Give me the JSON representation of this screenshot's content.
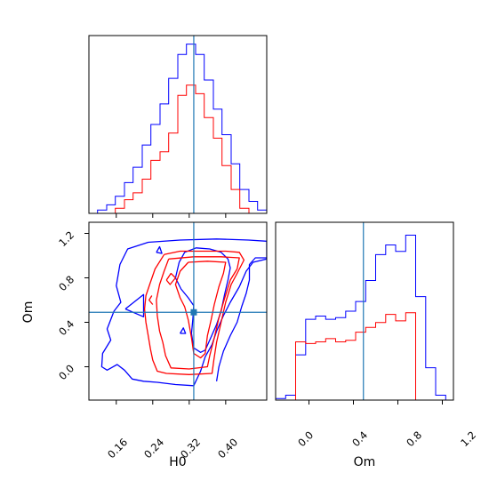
{
  "chart_data": {
    "type": "corner",
    "parameters": [
      "H0",
      "Om"
    ],
    "truths": {
      "H0": 0.33,
      "Om": 0.49
    },
    "colors": {
      "blue": "#0000ff",
      "red": "#ff0000",
      "truth": "#1f77b4"
    },
    "axes": {
      "H0": {
        "xlabel": "H0",
        "range": [
          0.1,
          0.49
        ],
        "ticks": [
          "0.16",
          "0.24",
          "0.32",
          "0.40"
        ]
      },
      "Om": {
        "ylabel": "Om",
        "xlabel": "Om",
        "range": [
          -0.3,
          1.3
        ],
        "ticks": [
          "0.0",
          "0.4",
          "0.8",
          "1.2"
        ]
      }
    },
    "hist_H0": {
      "edges": [
        0.1,
        0.119,
        0.139,
        0.158,
        0.178,
        0.197,
        0.217,
        0.236,
        0.256,
        0.275,
        0.295,
        0.314,
        0.334,
        0.353,
        0.373,
        0.392,
        0.412,
        0.431,
        0.451,
        0.47,
        0.49
      ],
      "series": [
        {
          "color": "blue",
          "values": [
            0,
            2,
            5,
            10,
            18,
            27,
            40,
            52,
            64,
            79,
            93,
            99,
            93,
            78,
            61,
            46,
            29,
            14,
            7,
            2
          ]
        },
        {
          "color": "red",
          "values": [
            0,
            0,
            0,
            3,
            8,
            12,
            20,
            31,
            36,
            47,
            69,
            75,
            70,
            56,
            44,
            28,
            14,
            3,
            0,
            0
          ]
        }
      ],
      "ymax": 104
    },
    "hist_Om": {
      "edges": [
        -0.3,
        -0.21,
        -0.12,
        -0.03,
        0.06,
        0.15,
        0.24,
        0.33,
        0.42,
        0.51,
        0.6,
        0.69,
        0.78,
        0.87,
        0.96,
        1.05,
        1.14,
        1.23
      ],
      "series": [
        {
          "color": "blue",
          "values": [
            1,
            3,
            28,
            50,
            52,
            50,
            51,
            55,
            61,
            74,
            90,
            96,
            92,
            102,
            64,
            20,
            3
          ]
        },
        {
          "color": "red",
          "values": [
            0,
            0,
            36,
            35,
            36,
            38,
            36,
            37,
            42,
            45,
            48,
            53,
            49,
            54,
            0,
            0,
            0
          ]
        }
      ],
      "ymax": 110
    },
    "contours": [
      {
        "color": "blue",
        "points": [
          [
            0.25,
            -0.14
          ],
          [
            0.22,
            -0.13
          ],
          [
            0.195,
            -0.11
          ],
          [
            0.178,
            -0.03
          ],
          [
            0.162,
            0.02
          ],
          [
            0.14,
            -0.03
          ],
          [
            0.128,
            0.0
          ],
          [
            0.13,
            0.12
          ],
          [
            0.148,
            0.24
          ],
          [
            0.14,
            0.34
          ],
          [
            0.155,
            0.5
          ],
          [
            0.17,
            0.58
          ],
          [
            0.16,
            0.73
          ],
          [
            0.168,
            0.92
          ],
          [
            0.185,
            1.06
          ],
          [
            0.23,
            1.12
          ],
          [
            0.3,
            1.14
          ],
          [
            0.38,
            1.15
          ],
          [
            0.45,
            1.14
          ],
          [
            0.49,
            1.13
          ],
          [
            0.49,
            0.97
          ],
          [
            0.46,
            0.94
          ],
          [
            0.445,
            0.86
          ],
          [
            0.43,
            0.72
          ],
          [
            0.41,
            0.58
          ],
          [
            0.395,
            0.46
          ],
          [
            0.38,
            0.32
          ],
          [
            0.37,
            0.2
          ],
          [
            0.355,
            0.09
          ],
          [
            0.345,
            -0.04
          ],
          [
            0.33,
            -0.17
          ],
          [
            0.29,
            -0.16
          ],
          [
            0.25,
            -0.14
          ]
        ]
      },
      {
        "color": "blue",
        "points": [
          [
            0.38,
            -0.13
          ],
          [
            0.385,
            0.0
          ],
          [
            0.395,
            0.14
          ],
          [
            0.41,
            0.28
          ],
          [
            0.425,
            0.4
          ],
          [
            0.435,
            0.54
          ],
          [
            0.445,
            0.66
          ],
          [
            0.452,
            0.78
          ],
          [
            0.452,
            0.92
          ],
          [
            0.465,
            0.98
          ],
          [
            0.49,
            0.98
          ]
        ]
      },
      {
        "color": "blue",
        "points": [
          [
            0.298,
            0.94
          ],
          [
            0.31,
            1.03
          ],
          [
            0.335,
            1.07
          ],
          [
            0.365,
            1.06
          ],
          [
            0.39,
            1.03
          ],
          [
            0.405,
            0.97
          ],
          [
            0.41,
            0.89
          ],
          [
            0.405,
            0.78
          ],
          [
            0.397,
            0.64
          ],
          [
            0.39,
            0.5
          ],
          [
            0.38,
            0.38
          ],
          [
            0.365,
            0.24
          ],
          [
            0.355,
            0.15
          ],
          [
            0.345,
            0.13
          ],
          [
            0.33,
            0.17
          ],
          [
            0.325,
            0.3
          ],
          [
            0.328,
            0.43
          ],
          [
            0.33,
            0.55
          ],
          [
            0.318,
            0.62
          ],
          [
            0.302,
            0.7
          ],
          [
            0.29,
            0.8
          ],
          [
            0.298,
            0.94
          ]
        ]
      },
      {
        "color": "blue",
        "points": [
          [
            0.18,
            0.52
          ],
          [
            0.22,
            0.65
          ],
          [
            0.22,
            0.45
          ],
          [
            0.18,
            0.52
          ]
        ]
      },
      {
        "color": "blue",
        "points": [
          [
            0.248,
            1.03
          ],
          [
            0.255,
            1.08
          ],
          [
            0.26,
            1.02
          ],
          [
            0.248,
            1.03
          ]
        ]
      },
      {
        "color": "blue",
        "points": [
          [
            0.3,
            0.3
          ],
          [
            0.307,
            0.35
          ],
          [
            0.312,
            0.3
          ],
          [
            0.3,
            0.3
          ]
        ]
      },
      {
        "color": "red",
        "points": [
          [
            0.265,
            1.01
          ],
          [
            0.3,
            1.04
          ],
          [
            0.36,
            1.04
          ],
          [
            0.4,
            1.04
          ],
          [
            0.43,
            1.03
          ],
          [
            0.44,
            0.96
          ],
          [
            0.425,
            0.84
          ],
          [
            0.412,
            0.74
          ],
          [
            0.4,
            0.58
          ],
          [
            0.39,
            0.4
          ],
          [
            0.38,
            0.22
          ],
          [
            0.374,
            0.06
          ],
          [
            0.37,
            -0.06
          ],
          [
            0.32,
            -0.07
          ],
          [
            0.27,
            -0.06
          ],
          [
            0.25,
            -0.04
          ],
          [
            0.24,
            0.06
          ],
          [
            0.235,
            0.16
          ],
          [
            0.23,
            0.28
          ],
          [
            0.225,
            0.4
          ],
          [
            0.222,
            0.52
          ],
          [
            0.225,
            0.64
          ],
          [
            0.235,
            0.76
          ],
          [
            0.245,
            0.88
          ],
          [
            0.265,
            1.01
          ]
        ]
      },
      {
        "color": "red",
        "points": [
          [
            0.275,
            0.97
          ],
          [
            0.33,
            0.99
          ],
          [
            0.39,
            0.99
          ],
          [
            0.43,
            0.98
          ],
          [
            0.425,
            0.88
          ],
          [
            0.41,
            0.78
          ],
          [
            0.398,
            0.62
          ],
          [
            0.385,
            0.44
          ],
          [
            0.375,
            0.26
          ],
          [
            0.365,
            0.1
          ],
          [
            0.36,
            0.0
          ],
          [
            0.32,
            -0.02
          ],
          [
            0.28,
            -0.01
          ],
          [
            0.268,
            0.1
          ],
          [
            0.262,
            0.22
          ],
          [
            0.255,
            0.32
          ],
          [
            0.25,
            0.46
          ],
          [
            0.248,
            0.6
          ],
          [
            0.255,
            0.74
          ],
          [
            0.265,
            0.86
          ],
          [
            0.275,
            0.97
          ]
        ]
      },
      {
        "color": "red",
        "points": [
          [
            0.318,
            0.94
          ],
          [
            0.36,
            0.95
          ],
          [
            0.4,
            0.94
          ],
          [
            0.395,
            0.84
          ],
          [
            0.385,
            0.72
          ],
          [
            0.375,
            0.56
          ],
          [
            0.368,
            0.42
          ],
          [
            0.36,
            0.28
          ],
          [
            0.355,
            0.12
          ],
          [
            0.345,
            0.08
          ],
          [
            0.33,
            0.12
          ],
          [
            0.325,
            0.26
          ],
          [
            0.318,
            0.42
          ],
          [
            0.31,
            0.54
          ],
          [
            0.3,
            0.62
          ],
          [
            0.29,
            0.74
          ],
          [
            0.3,
            0.86
          ],
          [
            0.318,
            0.94
          ]
        ]
      },
      {
        "color": "red",
        "points": [
          [
            0.27,
            0.78
          ],
          [
            0.28,
            0.84
          ],
          [
            0.29,
            0.8
          ],
          [
            0.278,
            0.74
          ],
          [
            0.27,
            0.78
          ]
        ]
      },
      {
        "color": "red",
        "points": [
          [
            0.238,
            0.64
          ],
          [
            0.232,
            0.6
          ],
          [
            0.24,
            0.56
          ]
        ]
      }
    ]
  }
}
